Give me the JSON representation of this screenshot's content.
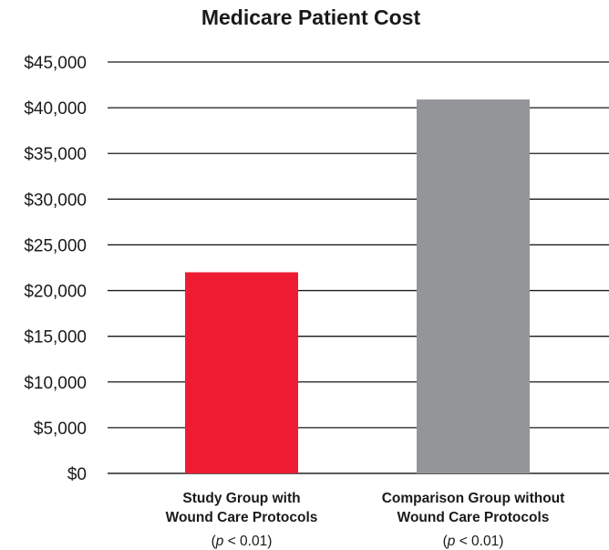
{
  "chart_data": {
    "type": "bar",
    "title": "Medicare Patient Cost",
    "xlabel": "",
    "ylabel": "",
    "ylim": [
      0,
      45000
    ],
    "yticks": [
      0,
      5000,
      10000,
      15000,
      20000,
      25000,
      30000,
      35000,
      40000,
      45000
    ],
    "ytick_labels": [
      "$0",
      "$5,000",
      "$10,000",
      "$15,000",
      "$20,000",
      "$25,000",
      "$30,000",
      "$35,000",
      "$40,000",
      "$45,000"
    ],
    "grid": true,
    "categories": [
      {
        "lines": [
          "Study Group with",
          "Wound Care Protocols"
        ],
        "note_prefix": "(",
        "note_symbol": "p",
        "note_rest": " < 0.01)"
      },
      {
        "lines": [
          "Comparison Group without",
          "Wound Care Protocols"
        ],
        "note_prefix": "(",
        "note_symbol": "p",
        "note_rest": " < 0.01)"
      }
    ],
    "values": [
      22000,
      40900
    ],
    "colors": [
      "#ee1c33",
      "#939598"
    ]
  }
}
